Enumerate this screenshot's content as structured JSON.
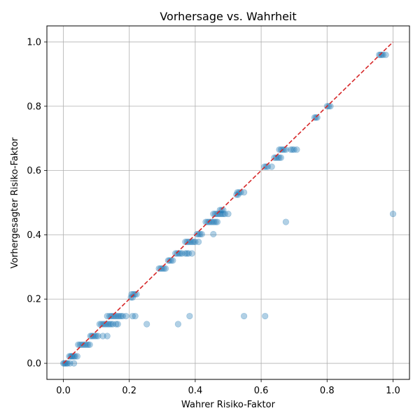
{
  "chart_data": {
    "type": "scatter",
    "title": "Vorhersage vs. Wahrheit",
    "xlabel": "Wahrer Risiko-Faktor",
    "ylabel": "Vorhergesagter Risiko-Faktor",
    "xlim": [
      -0.05,
      1.05
    ],
    "ylim": [
      -0.05,
      1.05
    ],
    "xticks": [
      "0.0",
      "0.2",
      "0.4",
      "0.6",
      "0.8",
      "1.0"
    ],
    "yticks": [
      "0.0",
      "0.2",
      "0.4",
      "0.6",
      "0.8",
      "1.0"
    ],
    "grid": true,
    "point_color": "#1f77b4",
    "reference_line_color": "#d62728",
    "reference_line": [
      [
        0,
        0
      ],
      [
        1,
        1
      ]
    ],
    "points": [
      [
        0.0,
        0.0
      ],
      [
        0.003,
        0.0
      ],
      [
        0.006,
        0.0
      ],
      [
        0.01,
        0.0
      ],
      [
        0.013,
        0.0
      ],
      [
        0.02,
        0.0
      ],
      [
        0.032,
        0.0
      ],
      [
        0.018,
        0.022
      ],
      [
        0.022,
        0.022
      ],
      [
        0.025,
        0.022
      ],
      [
        0.028,
        0.022
      ],
      [
        0.032,
        0.022
      ],
      [
        0.036,
        0.022
      ],
      [
        0.042,
        0.022
      ],
      [
        0.045,
        0.058
      ],
      [
        0.05,
        0.058
      ],
      [
        0.055,
        0.058
      ],
      [
        0.06,
        0.058
      ],
      [
        0.065,
        0.058
      ],
      [
        0.07,
        0.058
      ],
      [
        0.075,
        0.058
      ],
      [
        0.08,
        0.058
      ],
      [
        0.082,
        0.085
      ],
      [
        0.086,
        0.085
      ],
      [
        0.09,
        0.085
      ],
      [
        0.095,
        0.085
      ],
      [
        0.1,
        0.085
      ],
      [
        0.105,
        0.085
      ],
      [
        0.12,
        0.085
      ],
      [
        0.133,
        0.085
      ],
      [
        0.11,
        0.122
      ],
      [
        0.115,
        0.122
      ],
      [
        0.12,
        0.122
      ],
      [
        0.125,
        0.122
      ],
      [
        0.13,
        0.122
      ],
      [
        0.135,
        0.122
      ],
      [
        0.14,
        0.122
      ],
      [
        0.145,
        0.122
      ],
      [
        0.15,
        0.122
      ],
      [
        0.16,
        0.122
      ],
      [
        0.165,
        0.122
      ],
      [
        0.253,
        0.122
      ],
      [
        0.348,
        0.122
      ],
      [
        0.133,
        0.147
      ],
      [
        0.14,
        0.147
      ],
      [
        0.145,
        0.147
      ],
      [
        0.15,
        0.147
      ],
      [
        0.155,
        0.147
      ],
      [
        0.16,
        0.147
      ],
      [
        0.165,
        0.147
      ],
      [
        0.17,
        0.147
      ],
      [
        0.175,
        0.147
      ],
      [
        0.18,
        0.147
      ],
      [
        0.19,
        0.147
      ],
      [
        0.21,
        0.147
      ],
      [
        0.218,
        0.147
      ],
      [
        0.383,
        0.147
      ],
      [
        0.548,
        0.147
      ],
      [
        0.612,
        0.147
      ],
      [
        0.205,
        0.205
      ],
      [
        0.21,
        0.205
      ],
      [
        0.207,
        0.215
      ],
      [
        0.212,
        0.215
      ],
      [
        0.217,
        0.215
      ],
      [
        0.222,
        0.215
      ],
      [
        0.29,
        0.295
      ],
      [
        0.295,
        0.295
      ],
      [
        0.3,
        0.295
      ],
      [
        0.305,
        0.295
      ],
      [
        0.31,
        0.295
      ],
      [
        0.318,
        0.32
      ],
      [
        0.322,
        0.32
      ],
      [
        0.327,
        0.32
      ],
      [
        0.332,
        0.32
      ],
      [
        0.34,
        0.342
      ],
      [
        0.345,
        0.342
      ],
      [
        0.35,
        0.342
      ],
      [
        0.355,
        0.342
      ],
      [
        0.36,
        0.342
      ],
      [
        0.37,
        0.342
      ],
      [
        0.375,
        0.342
      ],
      [
        0.38,
        0.342
      ],
      [
        0.39,
        0.342
      ],
      [
        0.37,
        0.378
      ],
      [
        0.375,
        0.378
      ],
      [
        0.38,
        0.378
      ],
      [
        0.385,
        0.378
      ],
      [
        0.39,
        0.378
      ],
      [
        0.395,
        0.378
      ],
      [
        0.4,
        0.378
      ],
      [
        0.41,
        0.378
      ],
      [
        0.405,
        0.402
      ],
      [
        0.41,
        0.402
      ],
      [
        0.415,
        0.402
      ],
      [
        0.42,
        0.402
      ],
      [
        0.455,
        0.402
      ],
      [
        0.432,
        0.44
      ],
      [
        0.437,
        0.44
      ],
      [
        0.442,
        0.44
      ],
      [
        0.447,
        0.44
      ],
      [
        0.452,
        0.44
      ],
      [
        0.457,
        0.44
      ],
      [
        0.462,
        0.44
      ],
      [
        0.467,
        0.44
      ],
      [
        0.675,
        0.44
      ],
      [
        0.455,
        0.465
      ],
      [
        0.46,
        0.465
      ],
      [
        0.465,
        0.465
      ],
      [
        0.47,
        0.465
      ],
      [
        0.475,
        0.465
      ],
      [
        0.48,
        0.465
      ],
      [
        0.485,
        0.465
      ],
      [
        0.49,
        0.465
      ],
      [
        0.5,
        0.465
      ],
      [
        1.0,
        0.465
      ],
      [
        0.475,
        0.477
      ],
      [
        0.48,
        0.477
      ],
      [
        0.485,
        0.477
      ],
      [
        0.525,
        0.525
      ],
      [
        0.53,
        0.525
      ],
      [
        0.528,
        0.532
      ],
      [
        0.533,
        0.532
      ],
      [
        0.538,
        0.532
      ],
      [
        0.548,
        0.532
      ],
      [
        0.61,
        0.612
      ],
      [
        0.615,
        0.612
      ],
      [
        0.62,
        0.612
      ],
      [
        0.632,
        0.612
      ],
      [
        0.64,
        0.64
      ],
      [
        0.645,
        0.64
      ],
      [
        0.65,
        0.64
      ],
      [
        0.655,
        0.64
      ],
      [
        0.66,
        0.64
      ],
      [
        0.655,
        0.665
      ],
      [
        0.66,
        0.665
      ],
      [
        0.665,
        0.665
      ],
      [
        0.67,
        0.665
      ],
      [
        0.675,
        0.665
      ],
      [
        0.69,
        0.665
      ],
      [
        0.695,
        0.665
      ],
      [
        0.7,
        0.665
      ],
      [
        0.708,
        0.665
      ],
      [
        0.762,
        0.765
      ],
      [
        0.766,
        0.765
      ],
      [
        0.77,
        0.765
      ],
      [
        0.8,
        0.8
      ],
      [
        0.805,
        0.8
      ],
      [
        0.81,
        0.8
      ],
      [
        0.958,
        0.96
      ],
      [
        0.962,
        0.96
      ],
      [
        0.966,
        0.96
      ],
      [
        0.97,
        0.96
      ],
      [
        0.978,
        0.96
      ]
    ]
  }
}
